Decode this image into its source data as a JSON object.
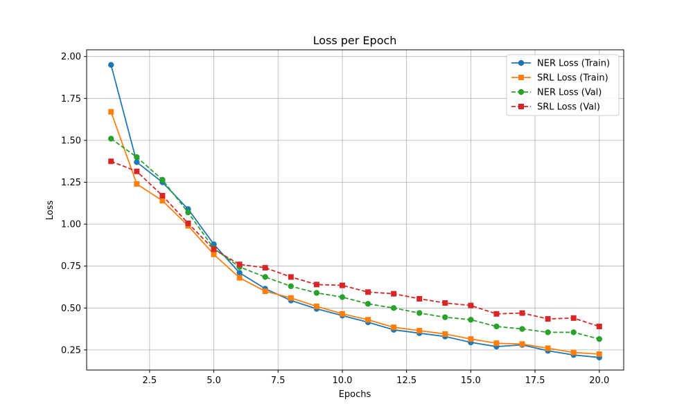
{
  "chart_data": {
    "type": "line",
    "title": "Loss per Epoch",
    "xlabel": "Epochs",
    "ylabel": "Loss",
    "xlim": [
      0.05,
      20.95
    ],
    "ylim": [
      0.13,
      2.04
    ],
    "xticks": [
      2.5,
      5.0,
      7.5,
      10.0,
      12.5,
      15.0,
      17.5,
      20.0
    ],
    "xtick_labels": [
      "2.5",
      "5.0",
      "7.5",
      "10.0",
      "12.5",
      "15.0",
      "17.5",
      "20.0"
    ],
    "yticks": [
      0.25,
      0.5,
      0.75,
      1.0,
      1.25,
      1.5,
      1.75,
      2.0
    ],
    "ytick_labels": [
      "0.25",
      "0.50",
      "0.75",
      "1.00",
      "1.25",
      "1.50",
      "1.75",
      "2.00"
    ],
    "grid": true,
    "legend_position": "top-right",
    "x": [
      1,
      2,
      3,
      4,
      5,
      6,
      7,
      8,
      9,
      10,
      11,
      12,
      13,
      14,
      15,
      16,
      17,
      18,
      19,
      20
    ],
    "series": [
      {
        "name": "NER Loss (Train)",
        "color": "#1f77b4",
        "linestyle": "solid",
        "marker": "circle",
        "values": [
          1.95,
          1.37,
          1.25,
          1.09,
          0.88,
          0.71,
          0.615,
          0.545,
          0.495,
          0.455,
          0.415,
          0.37,
          0.35,
          0.33,
          0.295,
          0.27,
          0.28,
          0.245,
          0.22,
          0.205
        ]
      },
      {
        "name": "SRL Loss (Train)",
        "color": "#ff7f0e",
        "linestyle": "solid",
        "marker": "square",
        "values": [
          1.67,
          1.24,
          1.14,
          0.99,
          0.82,
          0.68,
          0.6,
          0.56,
          0.51,
          0.465,
          0.43,
          0.385,
          0.365,
          0.345,
          0.315,
          0.29,
          0.285,
          0.26,
          0.235,
          0.225
        ]
      },
      {
        "name": "NER Loss (Val)",
        "color": "#2ca02c",
        "linestyle": "dashed",
        "marker": "circle",
        "values": [
          1.51,
          1.4,
          1.265,
          1.07,
          0.855,
          0.745,
          0.685,
          0.63,
          0.59,
          0.565,
          0.525,
          0.5,
          0.47,
          0.445,
          0.43,
          0.39,
          0.375,
          0.355,
          0.355,
          0.315
        ]
      },
      {
        "name": "SRL Loss (Val)",
        "color": "#d62728",
        "linestyle": "dashed",
        "marker": "square",
        "values": [
          1.375,
          1.315,
          1.17,
          1.005,
          0.85,
          0.76,
          0.74,
          0.685,
          0.64,
          0.635,
          0.595,
          0.585,
          0.555,
          0.53,
          0.515,
          0.465,
          0.47,
          0.435,
          0.44,
          0.39
        ]
      }
    ]
  }
}
